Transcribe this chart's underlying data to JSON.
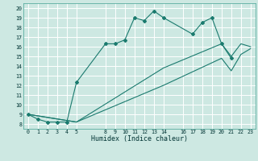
{
  "xlabel": "Humidex (Indice chaleur)",
  "bg_color": "#cde8e2",
  "grid_color": "#ffffff",
  "line_color": "#1a7a6e",
  "xlim": [
    -0.5,
    23.5
  ],
  "ylim": [
    7.5,
    20.5
  ],
  "xticks": [
    0,
    1,
    2,
    3,
    4,
    5,
    8,
    9,
    10,
    11,
    12,
    13,
    14,
    16,
    17,
    18,
    19,
    20,
    21,
    22,
    23
  ],
  "yticks": [
    8,
    9,
    10,
    11,
    12,
    13,
    14,
    15,
    16,
    17,
    18,
    19,
    20
  ],
  "line1_x": [
    0,
    1,
    2,
    3,
    4,
    5,
    8,
    9,
    10,
    11,
    12,
    13,
    14,
    17,
    18,
    19,
    20,
    21
  ],
  "line1_y": [
    9.0,
    8.5,
    8.2,
    8.2,
    8.2,
    12.3,
    16.3,
    16.3,
    16.7,
    19.0,
    18.7,
    19.7,
    19.0,
    17.3,
    18.5,
    19.0,
    16.3,
    14.8
  ],
  "line2_x": [
    0,
    5,
    14,
    20,
    21,
    22,
    23
  ],
  "line2_y": [
    9.0,
    8.2,
    13.8,
    16.3,
    15.0,
    16.3,
    16.0
  ],
  "line3_x": [
    0,
    5,
    14,
    20,
    21,
    22,
    23
  ],
  "line3_y": [
    9.0,
    8.2,
    12.0,
    14.8,
    13.5,
    15.2,
    15.8
  ]
}
